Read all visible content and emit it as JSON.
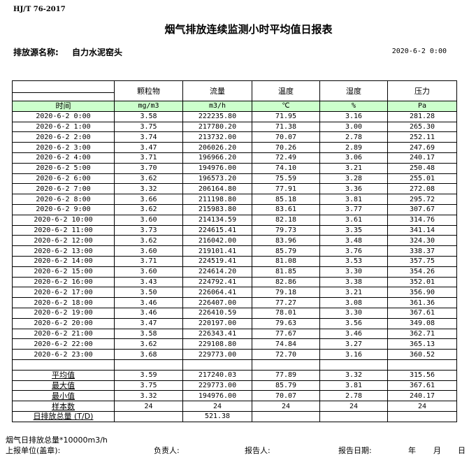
{
  "standard": "HJ/T  76-2017",
  "title": "烟气排放连续监测小时平均值日报表",
  "source_label": "排放源名称:",
  "source_name": "自力水泥窑头",
  "report_datetime": "2020-6-2  0:00",
  "table": {
    "columns": [
      "颗粒物",
      "流量",
      "温度",
      "湿度",
      "压力"
    ],
    "time_label": "时间",
    "units": [
      "mg/m3",
      "m3/h",
      "℃",
      "%",
      "Pa"
    ],
    "unit_row_color": "#ccffcc",
    "rows": [
      [
        "2020-6-2 0:00",
        "3.58",
        "222235.80",
        "71.95",
        "3.16",
        "281.28"
      ],
      [
        "2020-6-2 1:00",
        "3.75",
        "217780.20",
        "71.38",
        "3.00",
        "265.30"
      ],
      [
        "2020-6-2 2:00",
        "3.74",
        "213732.00",
        "70.07",
        "2.78",
        "252.11"
      ],
      [
        "2020-6-2 3:00",
        "3.47",
        "206026.20",
        "70.26",
        "2.89",
        "247.69"
      ],
      [
        "2020-6-2 4:00",
        "3.71",
        "196966.20",
        "72.49",
        "3.06",
        "240.17"
      ],
      [
        "2020-6-2 5:00",
        "3.70",
        "194976.00",
        "74.10",
        "3.21",
        "250.48"
      ],
      [
        "2020-6-2 6:00",
        "3.62",
        "196573.20",
        "75.59",
        "3.28",
        "255.01"
      ],
      [
        "2020-6-2 7:00",
        "3.32",
        "206164.80",
        "77.91",
        "3.36",
        "272.08"
      ],
      [
        "2020-6-2 8:00",
        "3.66",
        "211198.80",
        "85.18",
        "3.81",
        "295.72"
      ],
      [
        "2020-6-2 9:00",
        "3.62",
        "215983.80",
        "83.61",
        "3.77",
        "307.67"
      ],
      [
        "2020-6-2 10:00",
        "3.60",
        "214134.59",
        "82.18",
        "3.61",
        "314.76"
      ],
      [
        "2020-6-2 11:00",
        "3.73",
        "224615.41",
        "79.73",
        "3.35",
        "341.14"
      ],
      [
        "2020-6-2 12:00",
        "3.62",
        "216042.00",
        "83.96",
        "3.48",
        "324.30"
      ],
      [
        "2020-6-2 13:00",
        "3.60",
        "219101.41",
        "85.79",
        "3.76",
        "338.37"
      ],
      [
        "2020-6-2 14:00",
        "3.71",
        "224519.41",
        "81.08",
        "3.53",
        "357.75"
      ],
      [
        "2020-6-2 15:00",
        "3.60",
        "224614.20",
        "81.85",
        "3.30",
        "354.26"
      ],
      [
        "2020-6-2 16:00",
        "3.43",
        "224792.41",
        "82.86",
        "3.38",
        "352.01"
      ],
      [
        "2020-6-2 17:00",
        "3.50",
        "226064.41",
        "79.18",
        "3.21",
        "356.90"
      ],
      [
        "2020-6-2 18:00",
        "3.46",
        "226407.00",
        "77.27",
        "3.08",
        "361.36"
      ],
      [
        "2020-6-2 19:00",
        "3.46",
        "226410.59",
        "78.01",
        "3.30",
        "367.61"
      ],
      [
        "2020-6-2 20:00",
        "3.47",
        "220197.00",
        "79.63",
        "3.56",
        "349.08"
      ],
      [
        "2020-6-2 21:00",
        "3.58",
        "226343.41",
        "77.67",
        "3.46",
        "362.71"
      ],
      [
        "2020-6-2 22:00",
        "3.62",
        "229108.80",
        "74.84",
        "3.27",
        "365.13"
      ],
      [
        "2020-6-2 23:00",
        "3.68",
        "229773.00",
        "72.70",
        "3.16",
        "360.52"
      ]
    ],
    "stats": [
      [
        "平均值",
        "3.59",
        "217240.03",
        "77.89",
        "3.32",
        "315.56"
      ],
      [
        "最大值",
        "3.75",
        "229773.00",
        "85.79",
        "3.81",
        "367.61"
      ],
      [
        "最小值",
        "3.32",
        "194976.00",
        "70.07",
        "2.78",
        "240.17"
      ],
      [
        "样本数",
        "24",
        "24",
        "24",
        "24",
        "24"
      ],
      [
        "日排放总量 (T/D)",
        "",
        "521.38",
        "",
        "",
        ""
      ]
    ]
  },
  "footer": {
    "flue_note": "烟气日排放总量*10000m3/h",
    "unit_label": "上报单位(盖章):",
    "responsible_label": "负责人:",
    "reporter_label": "报告人:",
    "report_date_label": "报告日期:",
    "year": "年",
    "month": "月",
    "day": "日"
  }
}
